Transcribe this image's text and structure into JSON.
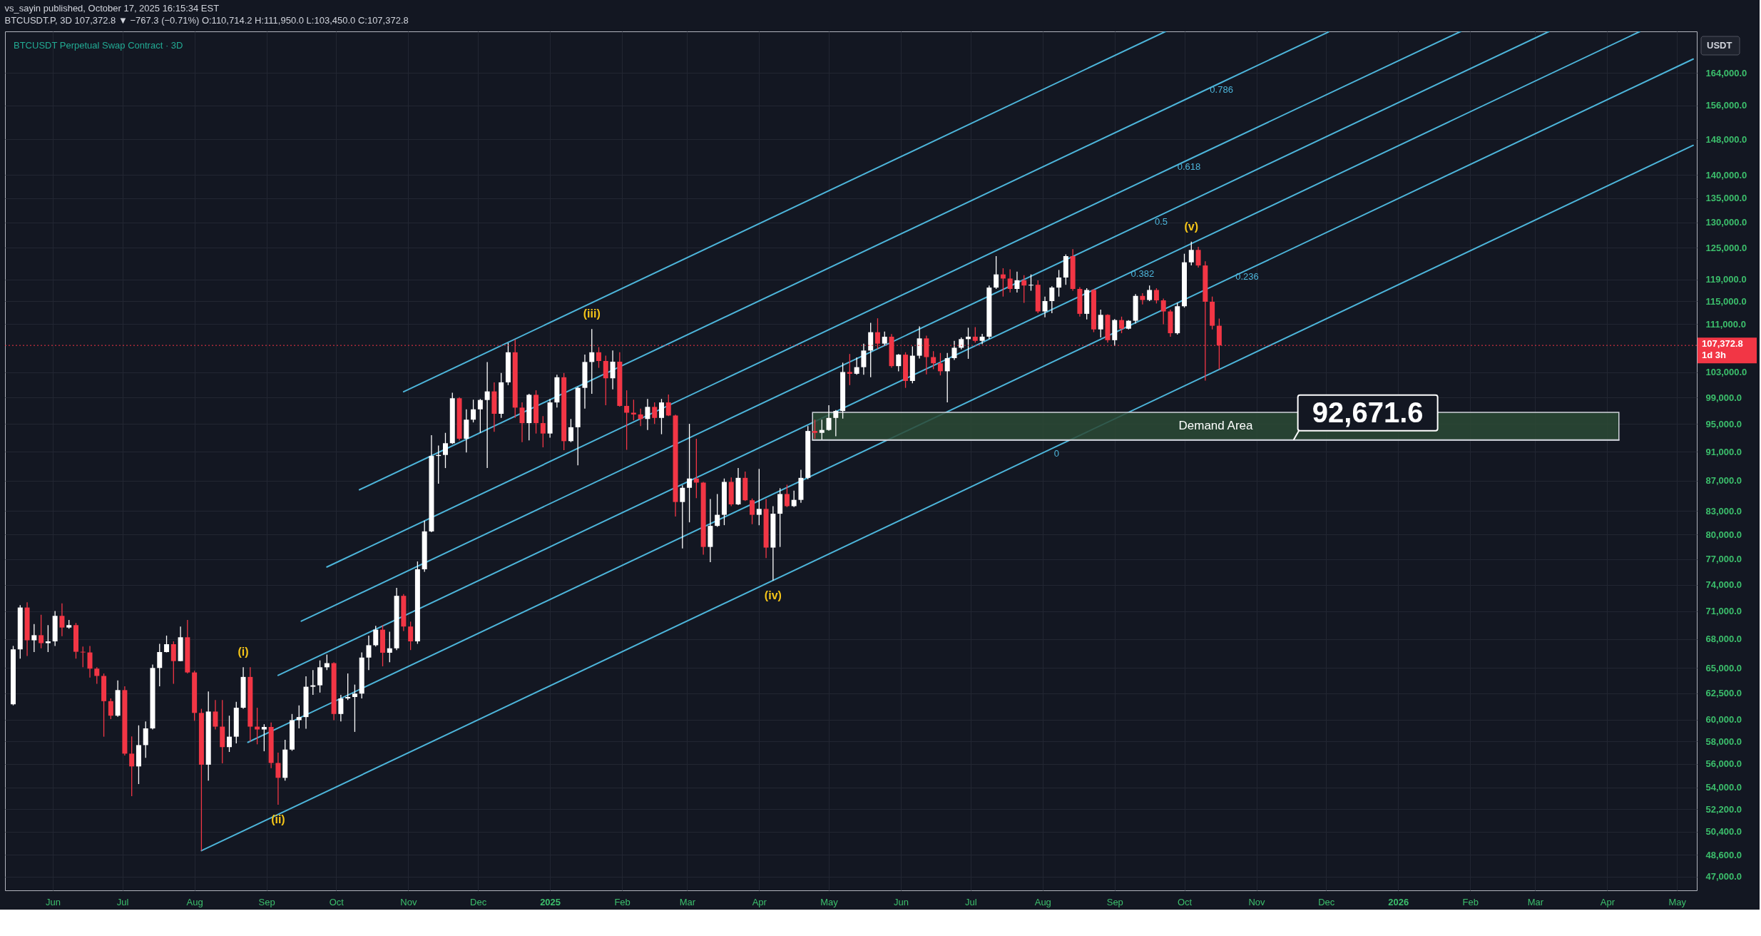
{
  "chart_data": {
    "type": "candlestick",
    "title": "vs_sayin published, October 17, 2025 16:15:34 EST",
    "subtitle": "BTCUSDT.P, 3D 107,372.8 ▼ −767.3 (−0.71%) O:110,714.2 H:111,950.0 L:103,450.0 C:107,372.8",
    "ylabel": "USDT",
    "x": [
      "2024-05-15",
      "2024-05-18",
      "2024-05-21",
      "2024-05-24",
      "2024-05-27",
      "2024-05-30",
      "2024-06-02",
      "2024-06-05",
      "2024-06-08",
      "2024-06-11",
      "2024-06-14",
      "2024-06-17",
      "2024-06-20",
      "2024-06-23",
      "2024-06-26",
      "2024-06-29",
      "2024-07-02",
      "2024-07-05",
      "2024-07-08",
      "2024-07-11",
      "2024-07-14",
      "2024-07-17",
      "2024-07-20",
      "2024-07-23",
      "2024-07-26",
      "2024-07-29",
      "2024-08-01",
      "2024-08-04",
      "2024-08-07",
      "2024-08-10",
      "2024-08-13",
      "2024-08-16",
      "2024-08-19",
      "2024-08-22",
      "2024-08-25",
      "2024-08-28",
      "2024-08-31",
      "2024-09-03",
      "2024-09-06",
      "2024-09-09",
      "2024-09-12",
      "2024-09-15",
      "2024-09-18",
      "2024-09-21",
      "2024-09-24",
      "2024-09-27",
      "2024-09-30",
      "2024-10-03",
      "2024-10-06",
      "2024-10-09",
      "2024-10-12",
      "2024-10-15",
      "2024-10-18",
      "2024-10-21",
      "2024-10-24",
      "2024-10-27",
      "2024-10-30",
      "2024-11-02",
      "2024-11-05",
      "2024-11-08",
      "2024-11-11",
      "2024-11-14",
      "2024-11-17",
      "2024-11-20",
      "2024-11-23",
      "2024-11-26",
      "2024-11-29",
      "2024-12-02",
      "2024-12-05",
      "2024-12-08",
      "2024-12-11",
      "2024-12-14",
      "2024-12-17",
      "2024-12-20",
      "2024-12-23",
      "2024-12-26",
      "2024-12-29",
      "2025-01-01",
      "2025-01-04",
      "2025-01-07",
      "2025-01-10",
      "2025-01-13",
      "2025-01-16",
      "2025-01-19",
      "2025-01-22",
      "2025-01-25",
      "2025-01-28",
      "2025-01-31",
      "2025-02-03",
      "2025-02-06",
      "2025-02-09",
      "2025-02-12",
      "2025-02-15",
      "2025-02-18",
      "2025-02-21",
      "2025-02-24",
      "2025-02-27",
      "2025-03-02",
      "2025-03-05",
      "2025-03-08",
      "2025-03-11",
      "2025-03-14",
      "2025-03-17",
      "2025-03-20",
      "2025-03-23",
      "2025-03-26",
      "2025-03-29",
      "2025-04-01",
      "2025-04-04",
      "2025-04-07",
      "2025-04-10",
      "2025-04-13",
      "2025-04-16",
      "2025-04-19",
      "2025-04-22",
      "2025-04-25",
      "2025-04-28",
      "2025-05-01",
      "2025-05-04",
      "2025-05-07",
      "2025-05-10",
      "2025-05-13",
      "2025-05-16",
      "2025-05-19",
      "2025-05-22",
      "2025-05-25",
      "2025-05-28",
      "2025-05-31",
      "2025-06-03",
      "2025-06-06",
      "2025-06-09",
      "2025-06-12",
      "2025-06-15",
      "2025-06-18",
      "2025-06-21",
      "2025-06-24",
      "2025-06-27",
      "2025-06-30",
      "2025-07-03",
      "2025-07-06",
      "2025-07-09",
      "2025-07-12",
      "2025-07-15",
      "2025-07-18",
      "2025-07-21",
      "2025-07-24",
      "2025-07-27",
      "2025-07-30",
      "2025-08-02",
      "2025-08-05",
      "2025-08-08",
      "2025-08-11",
      "2025-08-14",
      "2025-08-17",
      "2025-08-20",
      "2025-08-23",
      "2025-08-26",
      "2025-08-29",
      "2025-09-01",
      "2025-09-04",
      "2025-09-07",
      "2025-09-10",
      "2025-09-13",
      "2025-09-16",
      "2025-09-19",
      "2025-09-22",
      "2025-09-25",
      "2025-09-28",
      "2025-10-01",
      "2025-10-04",
      "2025-10-07",
      "2025-10-10",
      "2025-10-13",
      "2025-10-16"
    ],
    "ohlc": [
      [
        61440,
        67280,
        61340,
        66920
      ],
      [
        66920,
        71690,
        65960,
        71420
      ],
      [
        71420,
        72000,
        66240,
        67870
      ],
      [
        67870,
        69600,
        66640,
        68410
      ],
      [
        68410,
        70620,
        67030,
        67570
      ],
      [
        67570,
        69490,
        66640,
        67760
      ],
      [
        67760,
        71030,
        67280,
        70500
      ],
      [
        70500,
        71880,
        68300,
        69230
      ],
      [
        69230,
        70050,
        69110,
        69490
      ],
      [
        69490,
        69720,
        65960,
        66670
      ],
      [
        66670,
        67210,
        65080,
        66600
      ],
      [
        66600,
        67280,
        64040,
        64940
      ],
      [
        64940,
        65080,
        63420,
        64210
      ],
      [
        64210,
        64450,
        58420,
        61740
      ],
      [
        61740,
        62000,
        60040,
        60360
      ],
      [
        60360,
        63760,
        60260,
        62810
      ],
      [
        62810,
        63180,
        56740,
        56900
      ],
      [
        56900,
        58450,
        53260,
        55780
      ],
      [
        55780,
        59460,
        54270,
        57660
      ],
      [
        57660,
        59820,
        56530,
        59180
      ],
      [
        59180,
        65360,
        59080,
        65010
      ],
      [
        65010,
        67500,
        63180,
        66640
      ],
      [
        66640,
        68370,
        66600,
        67460
      ],
      [
        67460,
        67760,
        63420,
        65710
      ],
      [
        65710,
        69340,
        65710,
        68190
      ],
      [
        68190,
        70050,
        64450,
        64560
      ],
      [
        64560,
        64730,
        59880,
        60620
      ],
      [
        60620,
        61010,
        48930,
        55930
      ],
      [
        55930,
        62670,
        54560,
        60750
      ],
      [
        60750,
        61840,
        59080,
        59340
      ],
      [
        59340,
        61840,
        56050,
        57480
      ],
      [
        57480,
        60360,
        57050,
        58420
      ],
      [
        58420,
        61670,
        57820,
        61110
      ],
      [
        61110,
        65080,
        61010,
        64110
      ],
      [
        64110,
        65080,
        57970,
        59340
      ],
      [
        59340,
        61110,
        57730,
        59080
      ],
      [
        59080,
        59560,
        57110,
        59310
      ],
      [
        59310,
        59720,
        55630,
        56080
      ],
      [
        56080,
        56990,
        52550,
        54800
      ],
      [
        54800,
        58130,
        54560,
        57260
      ],
      [
        57260,
        60520,
        57150,
        59940
      ],
      [
        59940,
        61340,
        59180,
        60230
      ],
      [
        60230,
        64180,
        59150,
        63140
      ],
      [
        63140,
        64800,
        62340,
        63280
      ],
      [
        63280,
        65780,
        62570,
        65080
      ],
      [
        65080,
        66380,
        64800,
        65500
      ],
      [
        65500,
        65600,
        59940,
        60520
      ],
      [
        60520,
        62340,
        59820,
        62000
      ],
      [
        62000,
        64450,
        61840,
        62140
      ],
      [
        62140,
        63350,
        58860,
        62470
      ],
      [
        62470,
        66600,
        62000,
        66070
      ],
      [
        66070,
        68370,
        64800,
        67350
      ],
      [
        67350,
        69410,
        67210,
        69000
      ],
      [
        69000,
        69490,
        65180,
        66570
      ],
      [
        66570,
        68780,
        65600,
        67030
      ],
      [
        67030,
        73640,
        66850,
        72730
      ],
      [
        72730,
        72930,
        68850,
        69340
      ],
      [
        69340,
        69870,
        66850,
        67760
      ],
      [
        67760,
        76730,
        67500,
        75800
      ],
      [
        75800,
        81750,
        75500,
        80400
      ],
      [
        80400,
        93370,
        80300,
        90410
      ],
      [
        90410,
        91880,
        86590,
        90550
      ],
      [
        90550,
        93720,
        88720,
        92220
      ],
      [
        92220,
        99750,
        92120,
        98900
      ],
      [
        98900,
        99060,
        92620,
        92870
      ],
      [
        92870,
        97210,
        90890,
        95660
      ],
      [
        95660,
        98680,
        95250,
        97210
      ],
      [
        97210,
        98790,
        93720,
        98630
      ],
      [
        98630,
        104640,
        88720,
        99960
      ],
      [
        99960,
        101380,
        93880,
        96540
      ],
      [
        96540,
        102860,
        95920,
        101380
      ],
      [
        101380,
        107780,
        100940,
        106230
      ],
      [
        106230,
        108370,
        95920,
        97470
      ],
      [
        97470,
        98260,
        92370,
        95150
      ],
      [
        95150,
        99590,
        92620,
        99430
      ],
      [
        99430,
        100130,
        93620,
        95150
      ],
      [
        95150,
        96180,
        91630,
        93620
      ],
      [
        93620,
        98790,
        93020,
        98260
      ],
      [
        98260,
        102580,
        97470,
        102180
      ],
      [
        102180,
        102860,
        91230,
        92520
      ],
      [
        92520,
        95760,
        92370,
        94540
      ],
      [
        94540,
        100670,
        89090,
        100510
      ],
      [
        100510,
        105840,
        97310,
        104640
      ],
      [
        104640,
        110130,
        99590,
        106230
      ],
      [
        106230,
        107090,
        103690,
        104800
      ],
      [
        104800,
        105670,
        97840,
        102020
      ],
      [
        102020,
        106520,
        100290,
        104690
      ],
      [
        104690,
        106230,
        97630,
        97730
      ],
      [
        97730,
        100130,
        91280,
        96700
      ],
      [
        96700,
        98680,
        95560,
        96440
      ],
      [
        96440,
        97310,
        94720,
        95760
      ],
      [
        95760,
        98790,
        94140,
        97580
      ],
      [
        97580,
        98260,
        95020,
        95920
      ],
      [
        95920,
        98790,
        93520,
        98260
      ],
      [
        98260,
        99480,
        96180,
        96280
      ],
      [
        96280,
        96400,
        82280,
        84160
      ],
      [
        84160,
        86370,
        78290,
        86040
      ],
      [
        86040,
        95040,
        81540,
        87290
      ],
      [
        87290,
        92870,
        84660,
        86740
      ],
      [
        86740,
        86830,
        77540,
        78480
      ],
      [
        78480,
        84540,
        76650,
        81090
      ],
      [
        81090,
        85210,
        80970,
        82500
      ],
      [
        82500,
        87290,
        81180,
        86830
      ],
      [
        86830,
        87430,
        83620,
        83850
      ],
      [
        83850,
        88720,
        83760,
        87380
      ],
      [
        87380,
        88240,
        84300,
        84390
      ],
      [
        84390,
        84620,
        81310,
        82500
      ],
      [
        82500,
        88620,
        81180,
        83260
      ],
      [
        83260,
        84540,
        77140,
        78400
      ],
      [
        78400,
        83620,
        74480,
        82640
      ],
      [
        82640,
        85990,
        78480,
        85210
      ],
      [
        85210,
        86460,
        83490,
        83620
      ],
      [
        83620,
        85670,
        83500,
        84440
      ],
      [
        84440,
        88480,
        84070,
        87380
      ],
      [
        87380,
        94720,
        87200,
        93990
      ],
      [
        93990,
        95660,
        92870,
        93720
      ],
      [
        93720,
        95660,
        92770,
        94140
      ],
      [
        94140,
        97840,
        94040,
        95920
      ],
      [
        95920,
        97100,
        93220,
        96960
      ],
      [
        96960,
        104530,
        95820,
        103020
      ],
      [
        103020,
        105950,
        100940,
        102740
      ],
      [
        102740,
        105390,
        102580,
        103800
      ],
      [
        103800,
        107670,
        102580,
        106520
      ],
      [
        106520,
        111200,
        102200,
        109600
      ],
      [
        109600,
        112000,
        106810,
        107670
      ],
      [
        107670,
        109720,
        107380,
        108830
      ],
      [
        108830,
        109300,
        103690,
        103970
      ],
      [
        103970,
        105950,
        103130,
        105840
      ],
      [
        105840,
        106230,
        100510,
        101600
      ],
      [
        101600,
        107200,
        101220,
        105670
      ],
      [
        105670,
        110610,
        105200,
        108550
      ],
      [
        108550,
        109020,
        102640,
        105440
      ],
      [
        105440,
        106410,
        103480,
        104430
      ],
      [
        104430,
        106120,
        102480,
        103140
      ],
      [
        103140,
        106120,
        98270,
        105270
      ],
      [
        105270,
        108140,
        104990,
        106980
      ],
      [
        106980,
        108720,
        106700,
        108430
      ],
      [
        108430,
        110370,
        105160,
        108840
      ],
      [
        108840,
        110490,
        107850,
        108140
      ],
      [
        108140,
        109310,
        107560,
        108840
      ],
      [
        108840,
        117860,
        108430,
        117480
      ],
      [
        117480,
        123370,
        117230,
        119910
      ],
      [
        119910,
        121070,
        115850,
        119140
      ],
      [
        119140,
        120870,
        116600,
        117230
      ],
      [
        117230,
        120420,
        116600,
        118820
      ],
      [
        118820,
        119780,
        114730,
        117860
      ],
      [
        117860,
        119910,
        116910,
        117990
      ],
      [
        117990,
        118820,
        112900,
        113200
      ],
      [
        113200,
        115850,
        112170,
        115040
      ],
      [
        115040,
        117730,
        112900,
        117480
      ],
      [
        117480,
        120740,
        115850,
        119330
      ],
      [
        119330,
        123700,
        117990,
        123370
      ],
      [
        123370,
        124700,
        116910,
        117230
      ],
      [
        117230,
        117550,
        112290,
        112780
      ],
      [
        112780,
        117360,
        111810,
        117040
      ],
      [
        117040,
        117230,
        109610,
        110080
      ],
      [
        110080,
        113510,
        108720,
        112600
      ],
      [
        112600,
        112720,
        107850,
        108250
      ],
      [
        108250,
        111870,
        107270,
        111690
      ],
      [
        111690,
        112290,
        109430,
        110200
      ],
      [
        110200,
        111690,
        110080,
        111570
      ],
      [
        111570,
        116280,
        111090,
        115970
      ],
      [
        115970,
        116470,
        114430,
        115230
      ],
      [
        115230,
        117860,
        115040,
        117040
      ],
      [
        117040,
        117360,
        114610,
        115170
      ],
      [
        115170,
        115480,
        110970,
        113200
      ],
      [
        113200,
        113510,
        108840,
        109430
      ],
      [
        109430,
        114730,
        109190,
        114120
      ],
      [
        114120,
        123830,
        113880,
        122190
      ],
      [
        122190,
        126190,
        121590,
        124570
      ],
      [
        124570,
        125170,
        121200,
        121590
      ],
      [
        121590,
        122380,
        101660,
        114920
      ],
      [
        114920,
        115850,
        110080,
        110710
      ],
      [
        110714.2,
        111950.0,
        103450.0,
        107372.8
      ]
    ],
    "colors": [
      "#ffffff",
      "#ffffff",
      "#f23645",
      "#ffffff",
      "#f23645",
      "#ffffff",
      "#ffffff",
      "#f23645",
      "#ffffff",
      "#f23645",
      "#f23645",
      "#f23645",
      "#f23645",
      "#f23645",
      "#f23645",
      "#ffffff",
      "#f23645",
      "#f23645",
      "#ffffff",
      "#ffffff",
      "#ffffff",
      "#ffffff",
      "#ffffff",
      "#f23645",
      "#ffffff",
      "#f23645",
      "#f23645",
      "#f23645",
      "#ffffff",
      "#f23645",
      "#f23645",
      "#ffffff",
      "#ffffff",
      "#ffffff",
      "#f23645",
      "#f23645",
      "#ffffff",
      "#f23645",
      "#f23645",
      "#ffffff",
      "#ffffff",
      "#ffffff",
      "#ffffff",
      "#ffffff",
      "#ffffff",
      "#ffffff",
      "#f23645",
      "#ffffff",
      "#ffffff",
      "#ffffff",
      "#ffffff",
      "#ffffff",
      "#ffffff",
      "#f23645",
      "#ffffff",
      "#ffffff",
      "#f23645",
      "#f23645",
      "#ffffff",
      "#ffffff",
      "#ffffff",
      "#ffffff",
      "#ffffff",
      "#ffffff",
      "#f23645",
      "#ffffff",
      "#ffffff",
      "#ffffff",
      "#ffffff",
      "#f23645",
      "#ffffff",
      "#ffffff",
      "#f23645",
      "#f23645",
      "#ffffff",
      "#f23645",
      "#f23645",
      "#ffffff",
      "#ffffff",
      "#f23645",
      "#ffffff",
      "#ffffff",
      "#ffffff",
      "#ffffff",
      "#f23645",
      "#f23645",
      "#ffffff",
      "#f23645",
      "#f23645",
      "#f23645",
      "#f23645",
      "#ffffff",
      "#f23645",
      "#ffffff",
      "#f23645",
      "#f23645",
      "#ffffff",
      "#ffffff",
      "#f23645",
      "#f23645",
      "#ffffff",
      "#ffffff",
      "#ffffff",
      "#f23645",
      "#ffffff",
      "#f23645",
      "#f23645",
      "#ffffff",
      "#f23645",
      "#ffffff",
      "#ffffff",
      "#f23645",
      "#ffffff",
      "#ffffff",
      "#ffffff",
      "#f23645",
      "#ffffff",
      "#ffffff",
      "#ffffff",
      "#ffffff",
      "#f23645",
      "#ffffff",
      "#ffffff",
      "#ffffff",
      "#f23645",
      "#ffffff",
      "#f23645",
      "#ffffff",
      "#f23645",
      "#ffffff",
      "#ffffff",
      "#f23645",
      "#f23645",
      "#f23645",
      "#ffffff",
      "#ffffff",
      "#ffffff",
      "#ffffff",
      "#f23645",
      "#ffffff",
      "#ffffff",
      "#ffffff",
      "#f23645",
      "#f23645",
      "#ffffff",
      "#f23645",
      "#ffffff",
      "#f23645",
      "#ffffff",
      "#ffffff",
      "#ffffff",
      "#ffffff",
      "#f23645",
      "#f23645",
      "#ffffff",
      "#f23645",
      "#ffffff",
      "#f23645",
      "#ffffff",
      "#f23645",
      "#ffffff",
      "#ffffff",
      "#f23645",
      "#ffffff",
      "#f23645",
      "#f23645",
      "#f23645",
      "#ffffff",
      "#ffffff",
      "#ffffff",
      "#f23645",
      "#f23645",
      "#f23645",
      "#f23645"
    ],
    "series": [
      {
        "type": "line",
        "name": "0",
        "color": "#4db5da",
        "x": [
          "2024-08-04",
          "2025-08-07",
          "2026-05-08"
        ],
        "values": [
          48930,
          91770,
          146580
        ]
      },
      {
        "type": "line",
        "name": "0.236",
        "color": "#4db5da",
        "x": [
          "2024-08-24",
          "2025-10-28",
          "2026-05-08"
        ],
        "values": [
          57910,
          120740,
          167630
        ]
      },
      {
        "type": "line",
        "name": "0.382",
        "color": "#4db5da",
        "x": [
          "2024-09-06",
          "2025-09-13",
          "2026-04-15"
        ],
        "values": [
          64270,
          121360,
          174950
        ]
      },
      {
        "type": "line",
        "name": "0.5",
        "color": "#4db5da",
        "x": [
          "2024-09-16",
          "2025-09-21",
          "2026-03-07"
        ],
        "values": [
          69920,
          131570,
          175000
        ]
      },
      {
        "type": "line",
        "name": "0.618",
        "color": "#4db5da",
        "x": [
          "2024-09-27",
          "2025-10-03",
          "2026-01-28"
        ],
        "values": [
          76070,
          143390,
          175000
        ]
      },
      {
        "type": "line",
        "name": "0.786",
        "color": "#4db5da",
        "x": [
          "2024-10-11",
          "2025-10-17",
          "2025-12-02"
        ],
        "values": [
          85780,
          161650,
          174830
        ]
      },
      {
        "type": "line",
        "color": "#4db5da",
        "x": [
          "2024-10-30",
          "2025-09-23"
        ],
        "values": [
          99900,
          175000
        ]
      },
      {
        "type": "line",
        "name": "Demand Area",
        "color": "#d1d4dc",
        "x": [
          "2025-04-24",
          "2025-11-17",
          "2026-04-06"
        ],
        "values": [
          92671.6,
          92671.6,
          92671.6
        ],
        "lower": [
          92671.6,
          92671.6,
          92671.6
        ],
        "upper": [
          96750,
          96750,
          96750
        ],
        "value_labels": [
          null,
          "92,671.6",
          null
        ]
      }
    ],
    "annotations": [
      "BTCUSDT Perpetual Swap Contract · 3D",
      {
        "text": "(i)",
        "x": "2024-08-22",
        "y": 65080
      },
      {
        "text": "(ii)",
        "x": "2024-09-06",
        "y": 52550
      },
      {
        "text": "(iii)",
        "x": "2025-01-19",
        "y": 110130
      },
      {
        "text": "(iv)",
        "x": "2025-04-07",
        "y": 74480
      },
      {
        "text": "(v)",
        "x": "2025-10-04",
        "y": 126190
      }
    ],
    "ref_lines": [
      {
        "axis": "y",
        "value": 107372.8,
        "label": "107,372.8\n1d 3h",
        "color": "#f23645",
        "line_style": "dotted"
      }
    ],
    "xlim": [
      "2024-05-13",
      "2026-05-08"
    ],
    "xticks": [
      {
        "value": "2024-06-01",
        "label": "Jun"
      },
      {
        "value": "2024-07-01",
        "label": "Jul"
      },
      {
        "value": "2024-08-01",
        "label": "Aug"
      },
      {
        "value": "2024-09-01",
        "label": "Sep"
      },
      {
        "value": "2024-10-01",
        "label": "Oct"
      },
      {
        "value": "2024-11-01",
        "label": "Nov"
      },
      {
        "value": "2024-12-01",
        "label": "Dec"
      },
      {
        "value": "2025-01-01",
        "label": "2025"
      },
      {
        "value": "2025-02-01",
        "label": "Feb"
      },
      {
        "value": "2025-03-01",
        "label": "Mar"
      },
      {
        "value": "2025-04-01",
        "label": "Apr"
      },
      {
        "value": "2025-05-01",
        "label": "May"
      },
      {
        "value": "2025-06-01",
        "label": "Jun"
      },
      {
        "value": "2025-07-01",
        "label": "Jul"
      },
      {
        "value": "2025-08-01",
        "label": "Aug"
      },
      {
        "value": "2025-09-01",
        "label": "Sep"
      },
      {
        "value": "2025-10-01",
        "label": "Oct"
      },
      {
        "value": "2025-11-01",
        "label": "Nov"
      },
      {
        "value": "2025-12-01",
        "label": "Dec"
      },
      {
        "value": "2026-01-01",
        "label": "2026"
      },
      {
        "value": "2026-02-01",
        "label": "Feb"
      },
      {
        "value": "2026-03-01",
        "label": "Mar"
      },
      {
        "value": "2026-04-01",
        "label": "Apr"
      },
      {
        "value": "2026-05-01",
        "label": "May"
      }
    ],
    "ylim": [
      46000,
      175000
    ],
    "yticks": [
      {
        "value": 47000,
        "label": "47,000.0"
      },
      {
        "value": 48600,
        "label": "48,600.0"
      },
      {
        "value": 50400,
        "label": "50,400.0"
      },
      {
        "value": 52200,
        "label": "52,200.0"
      },
      {
        "value": 54000,
        "label": "54,000.0"
      },
      {
        "value": 56000,
        "label": "56,000.0"
      },
      {
        "value": 58000,
        "label": "58,000.0"
      },
      {
        "value": 60000,
        "label": "60,000.0"
      },
      {
        "value": 62500,
        "label": "62,500.0"
      },
      {
        "value": 65000,
        "label": "65,000.0"
      },
      {
        "value": 68000,
        "label": "68,000.0"
      },
      {
        "value": 71000,
        "label": "71,000.0"
      },
      {
        "value": 74000,
        "label": "74,000.0"
      },
      {
        "value": 77000,
        "label": "77,000.0"
      },
      {
        "value": 80000,
        "label": "80,000.0"
      },
      {
        "value": 83000,
        "label": "83,000.0"
      },
      {
        "value": 87000,
        "label": "87,000.0"
      },
      {
        "value": 91000,
        "label": "91,000.0"
      },
      {
        "value": 95000,
        "label": "95,000.0"
      },
      {
        "value": 99000,
        "label": "99,000.0"
      },
      {
        "value": 103000,
        "label": "103,000.0"
      },
      {
        "value": 111000,
        "label": "111,000.0"
      },
      {
        "value": 115000,
        "label": "115,000.0"
      },
      {
        "value": 119000,
        "label": "119,000.0"
      },
      {
        "value": 125000,
        "label": "125,000.0"
      },
      {
        "value": 130000,
        "label": "130,000.0"
      },
      {
        "value": 135000,
        "label": "135,000.0"
      },
      {
        "value": 140000,
        "label": "140,000.0"
      },
      {
        "value": 148000,
        "label": "148,000.0"
      },
      {
        "value": 156000,
        "label": "156,000.0"
      },
      {
        "value": 164000,
        "label": "164,000.0"
      }
    ],
    "log": true,
    "grid": true
  }
}
